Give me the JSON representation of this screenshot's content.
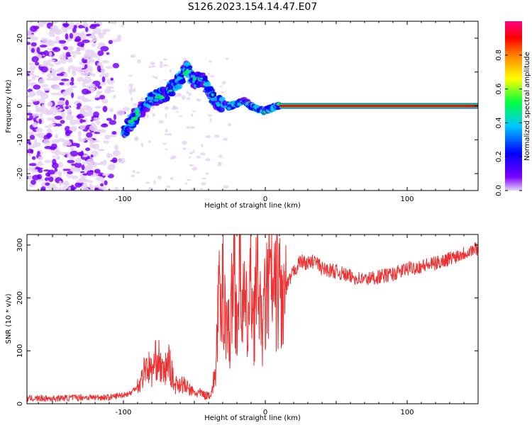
{
  "figure": {
    "title": "S126.2023.154.14.47.E07"
  },
  "chart_data": [
    {
      "type": "heatmap",
      "title": "",
      "xlabel": "Height of straight line (km)",
      "ylabel": "Frequency (Hz)",
      "xlim": [
        -168,
        150
      ],
      "ylim": [
        -25,
        25
      ],
      "xticks": [
        -100,
        0,
        100
      ],
      "xtick_labels": [
        "-100",
        "0",
        "100"
      ],
      "yticks": [
        -20,
        -10,
        0,
        10,
        20
      ],
      "ytick_labels": [
        "-20",
        "-10",
        "0",
        "10",
        "20"
      ],
      "colorbar": {
        "label": "Normalized spectral amplitude",
        "range": [
          0,
          1
        ],
        "ticks": [
          0.0,
          0.2,
          0.4,
          0.6,
          0.8
        ],
        "tick_labels": [
          "0.0",
          "0.2",
          "0.4",
          "0.6",
          "0.8"
        ],
        "colormap": [
          "#e6d4f5",
          "#7a00ff",
          "#0000ff",
          "#00c8ff",
          "#00ff40",
          "#ffff00",
          "#ff8000",
          "#ff0000",
          "#ff0080"
        ]
      },
      "features": {
        "noise_region_x": [
          -168,
          -95
        ],
        "ridge": {
          "x": [
            -100,
            -90,
            -80,
            -70,
            -60,
            -55,
            -50,
            -45,
            -40,
            -35,
            -30,
            -25,
            -20,
            -15,
            -10,
            -5,
            0,
            5,
            10
          ],
          "y": [
            -8,
            -2,
            2,
            3.5,
            8,
            11,
            7,
            8,
            5,
            1,
            0.5,
            0,
            0.5,
            1.5,
            0,
            -1,
            -1.5,
            -0.5,
            0
          ]
        },
        "steady_line": {
          "x": [
            10,
            150
          ],
          "y": 0,
          "amplitude": 0.9
        }
      }
    },
    {
      "type": "line",
      "title": "",
      "xlabel": "Height of straight line (km)",
      "ylabel": "SNR (10 * v/v)",
      "xlim": [
        -168,
        150
      ],
      "ylim": [
        0,
        320
      ],
      "xticks": [
        -100,
        0,
        100
      ],
      "xtick_labels": [
        "-100",
        "0",
        "100"
      ],
      "yticks": [
        0,
        100,
        200,
        300
      ],
      "ytick_labels": [
        "0",
        "100",
        "200",
        "300"
      ],
      "color": "#f03030",
      "series": [
        {
          "x": [
            -168,
            -150,
            -130,
            -110,
            -95,
            -88,
            -84,
            -80,
            -76,
            -72,
            -68,
            -64,
            -60,
            -55,
            -50,
            -45,
            -42,
            -38,
            -35,
            -33,
            -31,
            -30,
            -28,
            -25,
            -22,
            -20,
            -18,
            -15,
            -12,
            -10,
            -8,
            -5,
            -3,
            0,
            3,
            6,
            10,
            12,
            15,
            20,
            25,
            30,
            35,
            40,
            50,
            60,
            70,
            80,
            90,
            100,
            110,
            120,
            130,
            140,
            150
          ],
          "y": [
            10,
            10,
            12,
            12,
            20,
            40,
            75,
            60,
            90,
            55,
            80,
            35,
            40,
            30,
            20,
            20,
            15,
            20,
            60,
            200,
            150,
            230,
            180,
            120,
            280,
            150,
            250,
            180,
            150,
            240,
            160,
            270,
            130,
            190,
            240,
            200,
            230,
            180,
            220,
            250,
            270,
            265,
            270,
            255,
            250,
            240,
            235,
            240,
            245,
            255,
            260,
            265,
            275,
            285,
            295
          ]
        }
      ]
    }
  ]
}
